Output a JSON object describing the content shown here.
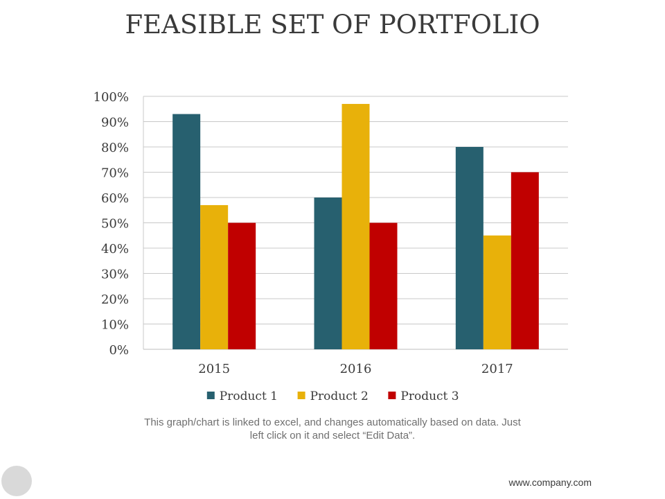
{
  "title": "FEASIBLE SET OF PORTFOLIO",
  "note_line1": "This graph/chart is linked to excel, and changes automatically based on data. Just",
  "note_line2": "left click on it and select “Edit Data”.",
  "footer": "www.company.com",
  "chart_data": {
    "type": "bar",
    "categories": [
      "2015",
      "2016",
      "2017"
    ],
    "series": [
      {
        "name": "Product 1",
        "color": "#27606f",
        "values": [
          93,
          60,
          80
        ]
      },
      {
        "name": "Product 2",
        "color": "#e8b10a",
        "values": [
          57,
          97,
          45
        ]
      },
      {
        "name": "Product 3",
        "color": "#c00000",
        "values": [
          50,
          50,
          70
        ]
      }
    ],
    "ylim": [
      0,
      100
    ],
    "yticks": [
      0,
      10,
      20,
      30,
      40,
      50,
      60,
      70,
      80,
      90,
      100
    ],
    "ytick_labels": [
      "0%",
      "10%",
      "20%",
      "30%",
      "40%",
      "50%",
      "60%",
      "70%",
      "80%",
      "90%",
      "100%"
    ],
    "xlabel": "",
    "ylabel": "",
    "grid": true,
    "legend_position": "bottom"
  }
}
